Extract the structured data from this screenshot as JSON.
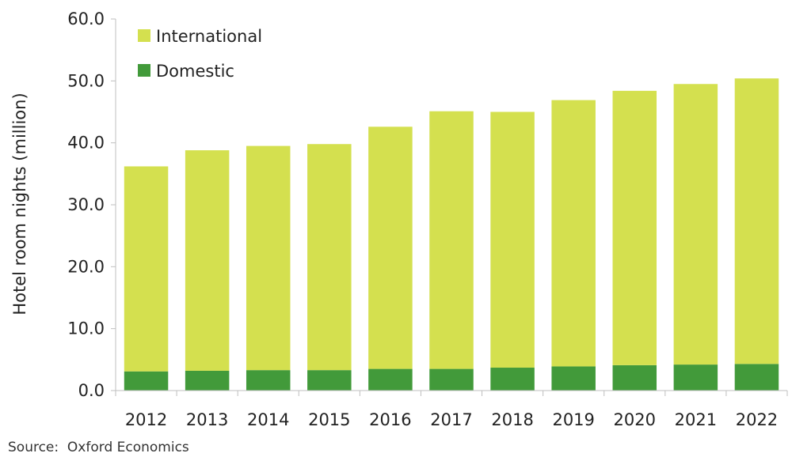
{
  "chart_data": {
    "type": "bar",
    "stacked": true,
    "categories": [
      "2012",
      "2013",
      "2014",
      "2015",
      "2016",
      "2017",
      "2018",
      "2019",
      "2020",
      "2021",
      "2022"
    ],
    "series": [
      {
        "name": "Domestic",
        "color": "#429a3a",
        "values": [
          3.1,
          3.2,
          3.3,
          3.3,
          3.5,
          3.5,
          3.7,
          3.9,
          4.1,
          4.2,
          4.3
        ]
      },
      {
        "name": "International",
        "color": "#d4e04f",
        "values": [
          33.1,
          35.6,
          36.2,
          36.5,
          39.1,
          41.6,
          41.3,
          43.0,
          44.3,
          45.3,
          46.1
        ]
      }
    ],
    "ylabel": "Hotel room nights (million)",
    "ylim": [
      0,
      60
    ],
    "yticks": [
      "0.0",
      "10.0",
      "20.0",
      "30.0",
      "40.0",
      "50.0",
      "60.0"
    ],
    "legend": {
      "placement": "top-left",
      "order": [
        "International",
        "Domestic"
      ]
    },
    "grid": false
  },
  "source": "Source:  Oxford Economics",
  "colors": {
    "axis": "#bfbfbf",
    "text": "#222222"
  }
}
